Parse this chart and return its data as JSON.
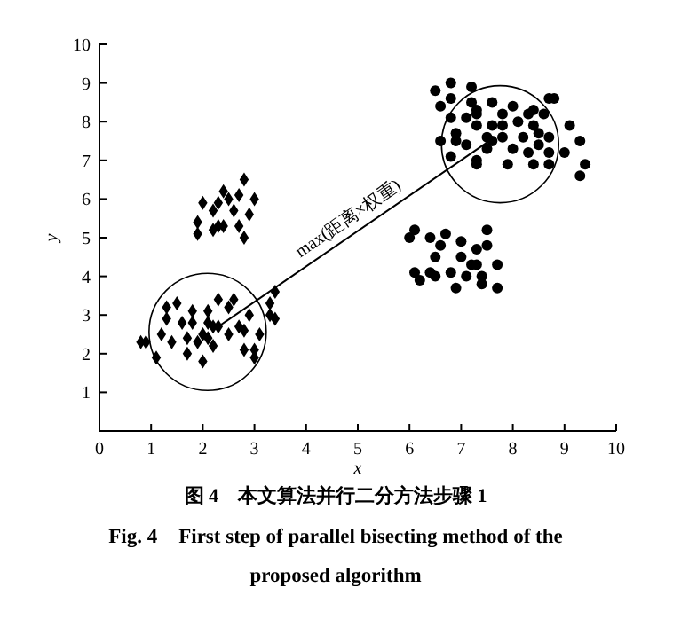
{
  "chart_data": {
    "type": "scatter",
    "xlabel": "x",
    "ylabel": "y",
    "xlim": [
      0,
      10
    ],
    "ylim": [
      0,
      10
    ],
    "xticks": [
      0,
      1,
      2,
      3,
      4,
      5,
      6,
      7,
      8,
      9,
      10
    ],
    "yticks": [
      1,
      2,
      3,
      4,
      5,
      6,
      7,
      8,
      9,
      10
    ],
    "grid": false,
    "series": [
      {
        "marker": "diamond",
        "color": "#000000",
        "x": [
          1.9,
          1.9,
          2.0,
          2.2,
          2.3,
          2.2,
          2.3,
          2.4,
          2.4,
          2.5,
          2.6,
          2.7,
          2.7,
          2.8,
          2.8,
          2.9,
          3.0,
          0.8,
          0.9,
          1.1,
          1.2,
          1.3,
          1.3,
          1.4,
          1.5,
          1.6,
          1.7,
          1.7,
          1.8,
          1.8,
          1.9,
          2.0,
          2.0,
          2.1,
          2.1,
          2.1,
          2.2,
          2.2,
          2.3,
          2.3,
          2.5,
          2.5,
          2.6,
          2.7,
          2.8,
          2.8,
          2.9,
          3.0,
          3.0,
          3.1,
          3.3,
          3.3,
          3.4,
          3.4
        ],
        "values": [
          5.4,
          5.1,
          5.9,
          5.7,
          5.9,
          5.2,
          5.3,
          5.3,
          6.2,
          6.0,
          5.7,
          5.3,
          6.1,
          6.5,
          5.0,
          5.6,
          6.0,
          2.3,
          2.3,
          1.9,
          2.5,
          3.2,
          2.9,
          2.3,
          3.3,
          2.8,
          2.0,
          2.4,
          3.1,
          2.8,
          2.3,
          1.8,
          2.5,
          3.1,
          2.4,
          2.8,
          2.2,
          2.7,
          2.7,
          3.4,
          3.2,
          2.5,
          3.4,
          2.7,
          2.6,
          2.1,
          3.0,
          2.1,
          1.9,
          2.5,
          3.3,
          3.0,
          2.9,
          3.6
        ]
      },
      {
        "marker": "circle",
        "color": "#000000",
        "x": [
          6.5,
          6.6,
          6.6,
          6.8,
          6.8,
          6.8,
          6.8,
          6.9,
          6.9,
          7.1,
          7.1,
          7.2,
          7.2,
          7.3,
          7.3,
          7.3,
          7.3,
          7.3,
          7.5,
          7.5,
          7.6,
          7.6,
          7.6,
          7.8,
          7.8,
          7.8,
          7.9,
          8.0,
          8.0,
          8.1,
          8.2,
          8.3,
          8.4,
          8.4,
          8.3,
          8.4,
          8.5,
          8.5,
          8.6,
          8.7,
          8.7,
          8.7,
          8.7,
          8.8,
          9.0,
          9.1,
          9.3,
          9.3,
          9.4,
          6.0,
          6.1,
          6.1,
          6.2,
          6.4,
          6.4,
          6.5,
          6.5,
          6.6,
          6.7,
          6.8,
          6.9,
          7.0,
          7.0,
          7.1,
          7.2,
          7.3,
          7.3,
          7.4,
          7.4,
          7.5,
          7.5,
          7.7,
          7.7
        ],
        "values": [
          8.8,
          8.4,
          7.5,
          7.1,
          9.0,
          8.1,
          8.6,
          7.5,
          7.7,
          7.4,
          8.1,
          8.9,
          8.5,
          8.2,
          7.9,
          7.0,
          6.9,
          8.3,
          7.6,
          7.3,
          7.9,
          8.5,
          7.5,
          8.2,
          7.9,
          7.6,
          6.9,
          7.3,
          8.4,
          8.0,
          7.6,
          8.2,
          7.9,
          8.3,
          7.2,
          6.9,
          7.4,
          7.7,
          8.2,
          7.2,
          7.6,
          6.9,
          8.6,
          8.6,
          7.2,
          7.9,
          7.5,
          6.6,
          6.9,
          5.0,
          5.2,
          4.1,
          3.9,
          5.0,
          4.1,
          4.0,
          4.5,
          4.8,
          5.1,
          4.1,
          3.7,
          4.9,
          4.5,
          4.0,
          4.3,
          4.3,
          4.7,
          4.0,
          3.8,
          4.8,
          5.2,
          4.3,
          3.7
        ]
      },
      {
        "type": "line",
        "marker": "none",
        "color": "#000000",
        "x": [
          2.3,
          7.65
        ],
        "values": [
          2.7,
          7.6
        ]
      }
    ],
    "annotations": [
      "max(距离×权重)",
      "图 4　本文算法并行二分方法步骤 1",
      "Fig. 4　First step of parallel bisecting method of the proposed algorithm"
    ]
  }
}
